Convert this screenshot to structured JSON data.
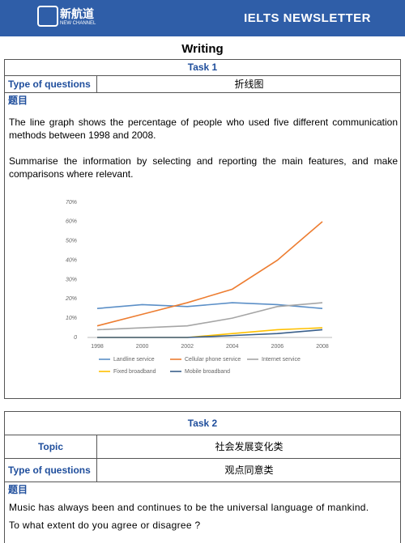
{
  "header": {
    "logo_cn": "新航道",
    "logo_en": "NEW CHANNEL",
    "title": "IELTS NEWSLETTER"
  },
  "section_title": "Writing",
  "task1": {
    "title": "Task 1",
    "type_label": "Type of questions",
    "type_value": "折线图",
    "prompt_label": "题目",
    "paragraphs": [
      "The line graph shows the percentage of people who used five different communication methods between 1998 and 2008.",
      "Summarise the information by selecting and reporting the main features, and make comparisons where relevant."
    ]
  },
  "chart_data": {
    "type": "line",
    "categories": [
      "1998",
      "2000",
      "2002",
      "2004",
      "2006",
      "2008"
    ],
    "series": [
      {
        "name": "Landline service",
        "color": "#5b8fc7",
        "values": [
          15,
          17,
          16,
          18,
          17,
          15
        ]
      },
      {
        "name": "Cellular phone service",
        "color": "#ed7d31",
        "values": [
          6,
          12,
          18,
          25,
          40,
          60
        ]
      },
      {
        "name": "Internet service",
        "color": "#a5a5a5",
        "values": [
          4,
          5,
          6,
          10,
          16,
          18
        ]
      },
      {
        "name": "Fixed broadband",
        "color": "#ffc000",
        "values": [
          0,
          0,
          0,
          2,
          4,
          5
        ]
      },
      {
        "name": "Mobile broadband",
        "color": "#3a5f8a",
        "values": [
          0,
          0,
          0,
          1,
          2,
          4
        ]
      }
    ],
    "ylim": [
      0,
      70
    ],
    "yticks": [
      0,
      {
        "value": 10,
        "label": "10%"
      },
      {
        "value": 20,
        "label": "20%"
      },
      {
        "value": 30,
        "label": "30%"
      },
      {
        "value": 40,
        "label": "40%"
      },
      {
        "value": 50,
        "label": "50%"
      },
      {
        "value": 60,
        "label": "60%"
      },
      {
        "value": 70,
        "label": "70%"
      }
    ],
    "grid": false
  },
  "task2": {
    "title": "Task 2",
    "topic_label": "Topic",
    "topic_value": "社会发展变化类",
    "type_label": "Type of questions",
    "type_value": "观点同意类",
    "prompt_label": "题目",
    "paragraphs": [
      "Music has always been and continues to be the universal language of mankind.",
      "To what extent do you agree or disagree ?"
    ]
  }
}
